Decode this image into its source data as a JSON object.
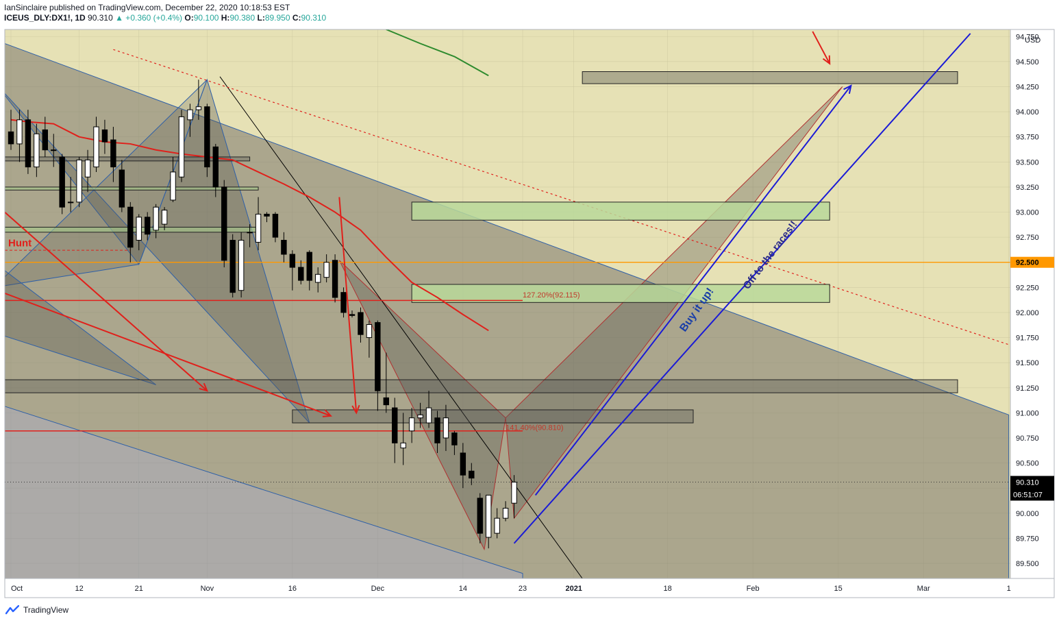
{
  "header": {
    "publisher_line": "IanSinclaire published on TradingView.com, December 22, 2020 10:18:53 EST",
    "symbol": "ICEUS_DLY:DX1!, 1D",
    "last": "90.310",
    "change": "▲ +0.360 (+0.4%)",
    "o_label": "O:",
    "o": "90.100",
    "h_label": "H:",
    "h": "90.380",
    "l_label": "L:",
    "l": "89.950",
    "c_label": "C:",
    "c": "90.310"
  },
  "footer": {
    "brand": "TradingView"
  },
  "colors": {
    "bullish_body": "#ffffff",
    "bearish_body": "#000000",
    "moving_average_red": "#e0201b",
    "moving_average_green": "#2e8b2e",
    "arrow_blue": "#1a1ad6",
    "level_orange": "#ff9800"
  },
  "chart_data": {
    "type": "candlestick",
    "currency": "USD",
    "y_range": [
      89.35,
      94.82
    ],
    "y_ticks": [
      "94.750",
      "94.500",
      "94.250",
      "94.000",
      "93.750",
      "93.500",
      "93.250",
      "93.000",
      "92.750",
      "92.500",
      "92.250",
      "92.000",
      "91.750",
      "91.500",
      "91.250",
      "91.000",
      "90.750",
      "90.500",
      "90.250",
      "90.000",
      "89.750",
      "89.500"
    ],
    "x_ticks": [
      {
        "label": "Oct",
        "day": 0
      },
      {
        "label": "12",
        "day": 8
      },
      {
        "label": "21",
        "day": 15
      },
      {
        "label": "Nov",
        "day": 23
      },
      {
        "label": "16",
        "day": 33
      },
      {
        "label": "Dec",
        "day": 43
      },
      {
        "label": "14",
        "day": 53
      },
      {
        "label": "23",
        "day": 60
      },
      {
        "label": "2021",
        "day": 66
      },
      {
        "label": "18",
        "day": 77
      },
      {
        "label": "Feb",
        "day": 87
      },
      {
        "label": "15",
        "day": 97
      },
      {
        "label": "Mar",
        "day": 107
      },
      {
        "label": "1",
        "day": 117
      }
    ],
    "candles": [
      {
        "o": 93.8,
        "h": 94.02,
        "l": 93.62,
        "c": 93.68
      },
      {
        "o": 93.68,
        "h": 94.02,
        "l": 93.5,
        "c": 93.92
      },
      {
        "o": 93.92,
        "h": 94.02,
        "l": 93.38,
        "c": 93.45
      },
      {
        "o": 93.45,
        "h": 93.88,
        "l": 93.35,
        "c": 93.78
      },
      {
        "o": 93.82,
        "h": 93.95,
        "l": 93.55,
        "c": 93.62
      },
      {
        "o": 93.62,
        "h": 93.78,
        "l": 93.45,
        "c": 93.62
      },
      {
        "o": 93.55,
        "h": 93.58,
        "l": 92.98,
        "c": 93.05
      },
      {
        "o": 93.1,
        "h": 93.35,
        "l": 93.0,
        "c": 93.1
      },
      {
        "o": 93.1,
        "h": 93.55,
        "l": 93.05,
        "c": 93.52
      },
      {
        "o": 93.35,
        "h": 93.62,
        "l": 93.2,
        "c": 93.52
      },
      {
        "o": 93.45,
        "h": 93.95,
        "l": 93.4,
        "c": 93.85
      },
      {
        "o": 93.82,
        "h": 93.92,
        "l": 93.58,
        "c": 93.7
      },
      {
        "o": 93.72,
        "h": 93.85,
        "l": 93.3,
        "c": 93.45
      },
      {
        "o": 93.42,
        "h": 93.52,
        "l": 93.0,
        "c": 93.05
      },
      {
        "o": 93.05,
        "h": 93.1,
        "l": 92.5,
        "c": 92.65
      },
      {
        "o": 92.72,
        "h": 92.98,
        "l": 92.62,
        "c": 92.95
      },
      {
        "o": 92.95,
        "h": 93.0,
        "l": 92.72,
        "c": 92.78
      },
      {
        "o": 92.82,
        "h": 93.08,
        "l": 92.74,
        "c": 93.05
      },
      {
        "o": 92.88,
        "h": 93.05,
        "l": 92.82,
        "c": 93.02
      },
      {
        "o": 93.12,
        "h": 93.55,
        "l": 93.1,
        "c": 93.4
      },
      {
        "o": 93.35,
        "h": 94.02,
        "l": 93.3,
        "c": 93.95
      },
      {
        "o": 93.92,
        "h": 94.08,
        "l": 93.75,
        "c": 94.02
      },
      {
        "o": 94.02,
        "h": 94.32,
        "l": 93.92,
        "c": 94.05
      },
      {
        "o": 94.05,
        "h": 94.08,
        "l": 93.35,
        "c": 93.45
      },
      {
        "o": 93.65,
        "h": 93.68,
        "l": 93.15,
        "c": 93.25
      },
      {
        "o": 93.25,
        "h": 93.32,
        "l": 92.45,
        "c": 92.52
      },
      {
        "o": 92.72,
        "h": 92.78,
        "l": 92.15,
        "c": 92.2
      },
      {
        "o": 92.22,
        "h": 92.8,
        "l": 92.15,
        "c": 92.72
      },
      {
        "o": 92.8,
        "h": 92.88,
        "l": 92.65,
        "c": 92.8
      },
      {
        "o": 92.7,
        "h": 93.15,
        "l": 92.62,
        "c": 92.98
      },
      {
        "o": 92.98,
        "h": 93.0,
        "l": 92.9,
        "c": 92.96
      },
      {
        "o": 92.98,
        "h": 93.0,
        "l": 92.7,
        "c": 92.75
      },
      {
        "o": 92.72,
        "h": 92.8,
        "l": 92.5,
        "c": 92.58
      },
      {
        "o": 92.58,
        "h": 92.62,
        "l": 92.22,
        "c": 92.45
      },
      {
        "o": 92.45,
        "h": 92.52,
        "l": 92.28,
        "c": 92.32
      },
      {
        "o": 92.6,
        "h": 92.62,
        "l": 92.22,
        "c": 92.32
      },
      {
        "o": 92.3,
        "h": 92.45,
        "l": 92.2,
        "c": 92.38
      },
      {
        "o": 92.35,
        "h": 92.58,
        "l": 92.3,
        "c": 92.5
      },
      {
        "o": 92.52,
        "h": 92.58,
        "l": 92.1,
        "c": 92.15
      },
      {
        "o": 92.2,
        "h": 92.25,
        "l": 91.95,
        "c": 92.0
      },
      {
        "o": 91.98,
        "h": 92.02,
        "l": 91.95,
        "c": 91.97
      },
      {
        "o": 92.0,
        "h": 92.05,
        "l": 91.7,
        "c": 91.78
      },
      {
        "o": 91.75,
        "h": 91.92,
        "l": 91.55,
        "c": 91.88
      },
      {
        "o": 91.9,
        "h": 91.92,
        "l": 91.02,
        "c": 91.22
      },
      {
        "o": 91.15,
        "h": 91.6,
        "l": 91.0,
        "c": 91.08
      },
      {
        "o": 91.05,
        "h": 91.15,
        "l": 90.5,
        "c": 90.7
      },
      {
        "o": 90.65,
        "h": 91.0,
        "l": 90.48,
        "c": 90.7
      },
      {
        "o": 90.82,
        "h": 91.05,
        "l": 90.7,
        "c": 90.95
      },
      {
        "o": 90.95,
        "h": 91.1,
        "l": 90.85,
        "c": 90.98
      },
      {
        "o": 90.9,
        "h": 91.22,
        "l": 90.85,
        "c": 91.05
      },
      {
        "o": 90.95,
        "h": 91.02,
        "l": 90.6,
        "c": 90.7
      },
      {
        "o": 90.75,
        "h": 91.08,
        "l": 90.62,
        "c": 90.95
      },
      {
        "o": 90.8,
        "h": 90.82,
        "l": 90.58,
        "c": 90.68
      },
      {
        "o": 90.6,
        "h": 90.7,
        "l": 90.25,
        "c": 90.38
      },
      {
        "o": 90.42,
        "h": 90.5,
        "l": 90.28,
        "c": 90.35
      },
      {
        "o": 90.15,
        "h": 90.2,
        "l": 89.7,
        "c": 89.8
      },
      {
        "o": 89.76,
        "h": 90.18,
        "l": 89.65,
        "c": 90.18
      },
      {
        "o": 89.8,
        "h": 90.05,
        "l": 89.75,
        "c": 89.95
      },
      {
        "o": 89.95,
        "h": 90.12,
        "l": 89.92,
        "c": 90.05
      },
      {
        "o": 90.1,
        "h": 90.38,
        "l": 89.95,
        "c": 90.31
      }
    ],
    "ma_red": [
      [
        0,
        93.92
      ],
      [
        2,
        93.9
      ],
      [
        5,
        93.88
      ],
      [
        8,
        93.75
      ],
      [
        11,
        93.7
      ],
      [
        14,
        93.68
      ],
      [
        17,
        93.62
      ],
      [
        20,
        93.58
      ],
      [
        23,
        93.55
      ],
      [
        26,
        93.52
      ],
      [
        29,
        93.4
      ],
      [
        32,
        93.28
      ],
      [
        35,
        93.15
      ],
      [
        38,
        93.0
      ],
      [
        41,
        92.82
      ],
      [
        44,
        92.55
      ],
      [
        47,
        92.3
      ],
      [
        50,
        92.15
      ],
      [
        53,
        91.98
      ],
      [
        56,
        91.82
      ]
    ],
    "ma_green": [
      [
        44,
        94.82
      ],
      [
        48,
        94.68
      ],
      [
        52,
        94.55
      ],
      [
        56,
        94.36
      ]
    ],
    "zones": [
      {
        "d0": -1,
        "d1": 28,
        "p0": 93.55,
        "p1": 93.51,
        "fill": "#5a5a55",
        "opacity": 0.35
      },
      {
        "d0": -1,
        "d1": 29,
        "p0": 93.25,
        "p1": 93.22,
        "fill": "#a5c98a",
        "opacity": 0.6
      },
      {
        "d0": -1,
        "d1": 29,
        "p0": 92.85,
        "p1": 92.8,
        "fill": "#a5c98a",
        "opacity": 0.6
      },
      {
        "d0": 67,
        "d1": 111,
        "p0": 94.4,
        "p1": 94.28,
        "fill": "#6b6b60",
        "opacity": 0.45
      },
      {
        "d0": 47,
        "d1": 96,
        "p0": 93.1,
        "p1": 92.92,
        "fill": "#b9d89a",
        "opacity": 0.85
      },
      {
        "d0": 47,
        "d1": 96,
        "p0": 92.28,
        "p1": 92.1,
        "fill": "#b9d89a",
        "opacity": 0.85
      },
      {
        "d0": -1,
        "d1": 111,
        "p0": 91.33,
        "p1": 91.2,
        "fill": "#5a5a55",
        "opacity": 0.35
      },
      {
        "d0": 33,
        "d1": 80,
        "p0": 91.03,
        "p1": 90.9,
        "fill": "#5a5a55",
        "opacity": 0.35
      }
    ],
    "horizontal_levels": [
      {
        "price": 92.5,
        "color": "#ff9800",
        "label": "92.500",
        "style": "solid"
      },
      {
        "price": 92.12,
        "color": "#e0201b",
        "d1": 60,
        "style": "solid"
      },
      {
        "price": 90.82,
        "color": "#e0201b",
        "d1": 60,
        "style": "solid"
      },
      {
        "price": 90.31,
        "color": "#333333",
        "style": "dotted"
      }
    ],
    "fib_labels": [
      {
        "text": "127.20%(92.115)",
        "day": 60,
        "price": 92.17
      },
      {
        "text": "141.40%(90.810)",
        "day": 58,
        "price": 90.85
      }
    ],
    "annotations": [
      {
        "text": "Hunt",
        "day": 0,
        "price": 92.7,
        "color": "#e0201b"
      },
      {
        "text": "Buy it up!",
        "color": "#1a3fa8"
      },
      {
        "text": "Off to the races!!",
        "color": "#2a2a88"
      }
    ],
    "price_labels": {
      "last": "90.310",
      "countdown": "06:51:07",
      "highlight": "92.500"
    },
    "grid": true
  }
}
